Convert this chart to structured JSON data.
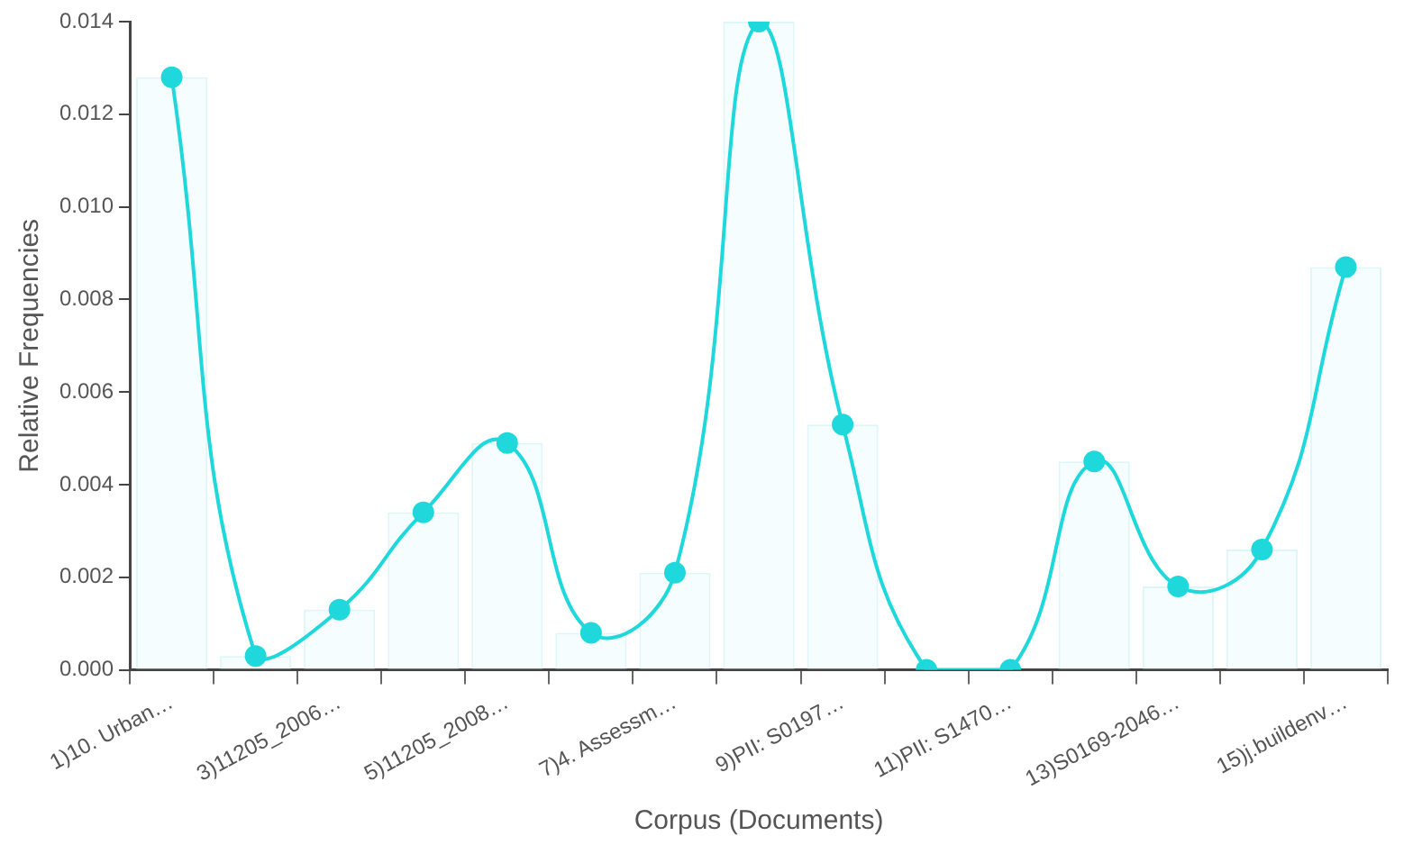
{
  "chart_data": {
    "type": "bar",
    "xlabel": "Corpus (Documents)",
    "ylabel": "Relative Frequencies",
    "categories": [
      "1)10. Urban…",
      null,
      "3)11205_2006…",
      null,
      "5)11205_2008…",
      null,
      "7)4. Assessm…",
      null,
      "9)PII: S0197…",
      null,
      "11)PII: S1470…",
      null,
      "13)S0169-2046…",
      null,
      "15)j.buildenv…"
    ],
    "series": [
      {
        "color": "#f5fdfe",
        "values": [
          0.0128,
          0.0003,
          0.0013,
          0.0034,
          0.0049,
          0.0008,
          0.0021,
          0.014,
          0.0053,
          0,
          0,
          0.0045,
          0.0018,
          0.0026,
          0.0087
        ]
      },
      {
        "type": "line",
        "color": "#1fd8dc",
        "values": [
          0.0128,
          0.0003,
          0.0013,
          0.0034,
          0.0049,
          0.0008,
          0.0021,
          0.014,
          0.0053,
          0,
          0,
          0.0045,
          0.0018,
          0.0026,
          0.0087
        ]
      }
    ],
    "ylim": [
      0,
      0.014
    ],
    "yticks": [
      {
        "value": 0,
        "label": "0.000"
      },
      {
        "value": 0.002,
        "label": "0.002"
      },
      {
        "value": 0.004,
        "label": "0.004"
      },
      {
        "value": 0.006,
        "label": "0.006"
      },
      {
        "value": 0.008,
        "label": "0.008"
      },
      {
        "value": 0.01,
        "label": "0.010"
      },
      {
        "value": 0.012,
        "label": "0.012"
      },
      {
        "value": 0.014,
        "label": "0.014"
      }
    ],
    "grid": false,
    "legend": false,
    "marker": "circle"
  }
}
